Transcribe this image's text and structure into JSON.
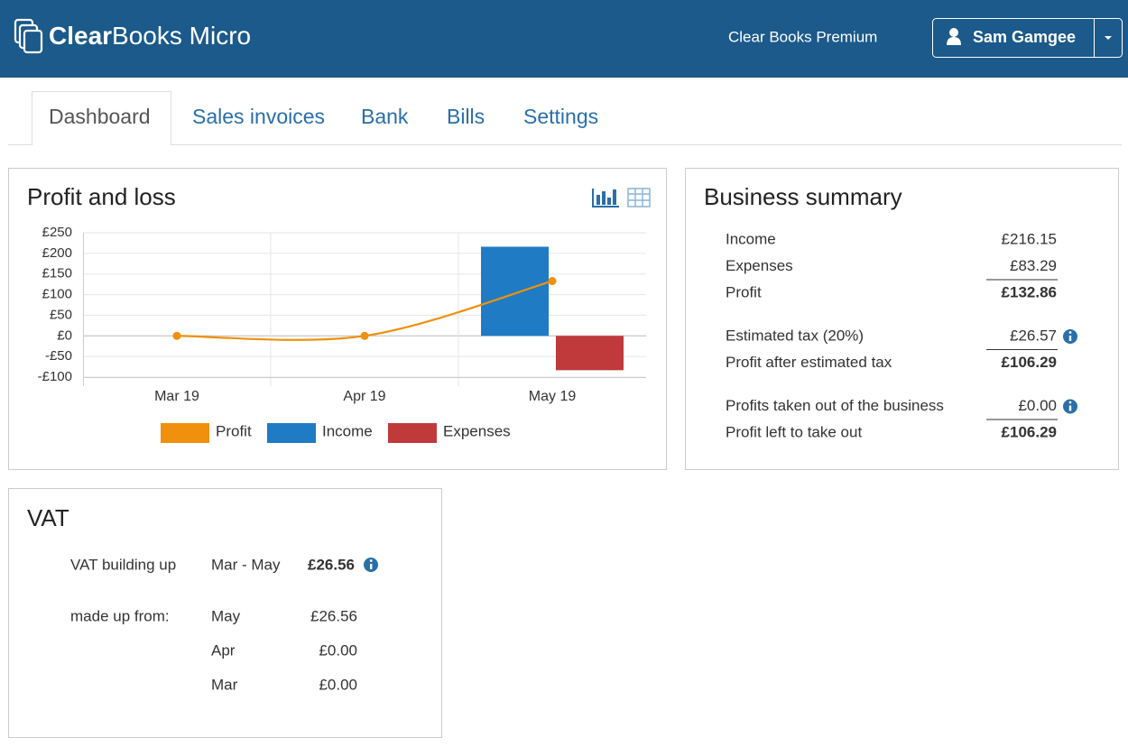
{
  "header": {
    "logo_bold": "Clear",
    "logo_rest": "Books Micro",
    "plan": "Clear Books Premium",
    "user": "Sam Gamgee"
  },
  "tabs": [
    "Dashboard",
    "Sales invoices",
    "Bank",
    "Bills",
    "Settings"
  ],
  "active_tab": 0,
  "chart_data": {
    "type": "bar",
    "title": "Profit and loss",
    "categories": [
      "Mar 19",
      "Apr 19",
      "May 19"
    ],
    "series": [
      {
        "name": "Profit",
        "type": "line",
        "color": "#f0900c",
        "values": [
          0,
          0,
          132.86
        ]
      },
      {
        "name": "Income",
        "color": "#1f7bc4",
        "values": [
          0,
          0,
          216.15
        ]
      },
      {
        "name": "Expenses",
        "color": "#c0393b",
        "values": [
          0,
          0,
          -83.29
        ]
      }
    ],
    "ylim": [
      -100,
      250
    ],
    "yticks": [
      {
        "value": -100,
        "label": "-£100"
      },
      {
        "value": -50,
        "label": "-£50"
      },
      {
        "value": 0,
        "label": "£0"
      },
      {
        "value": 50,
        "label": "£50"
      },
      {
        "value": 100,
        "label": "£100"
      },
      {
        "value": 150,
        "label": "£150"
      },
      {
        "value": 200,
        "label": "£200"
      },
      {
        "value": 250,
        "label": "£250"
      }
    ],
    "grid": true
  },
  "business_summary": {
    "title": "Business summary",
    "groups": [
      [
        {
          "label": "Income",
          "value": "£216.15"
        },
        {
          "label": "Expenses",
          "value": "£83.29",
          "rule": true
        },
        {
          "label": "Profit",
          "value": "£132.86",
          "bold": true
        }
      ],
      [
        {
          "label": "Estimated tax (20%)",
          "value": "£26.57",
          "rule": true,
          "info": true
        },
        {
          "label": "Profit after estimated tax",
          "value": "£106.29",
          "bold": true
        }
      ],
      [
        {
          "label": "Profits taken out of the business",
          "value": "£0.00",
          "rule": true,
          "info": true
        },
        {
          "label": "Profit left to take out",
          "value": "£106.29",
          "bold": true
        }
      ]
    ]
  },
  "vat": {
    "title": "VAT",
    "building_up": {
      "label": "VAT building up",
      "period": "Mar - May",
      "amount": "£26.56"
    },
    "made_up_from": {
      "label": "made up from:",
      "rows": [
        {
          "month": "May",
          "amount": "£26.56"
        },
        {
          "month": "Apr",
          "amount": "£0.00"
        },
        {
          "month": "Mar",
          "amount": "£0.00"
        }
      ]
    }
  }
}
